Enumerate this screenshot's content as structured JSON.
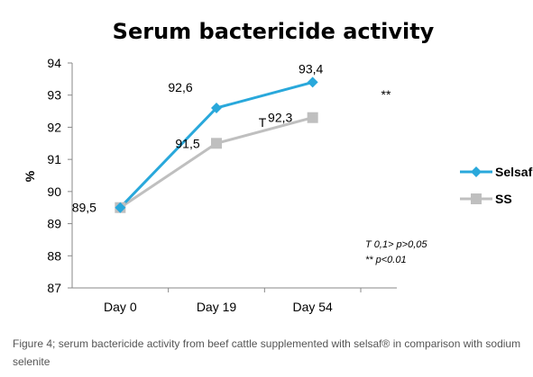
{
  "chart_data": {
    "type": "line",
    "title": "Serum bactericide activity",
    "xlabel": "",
    "ylabel": "%",
    "categories": [
      "Day 0",
      "Day 19",
      "Day 54"
    ],
    "ylim": [
      87,
      94
    ],
    "yticks": [
      "87",
      "88",
      "89",
      "90",
      "91",
      "92",
      "93",
      "94"
    ],
    "grid": false,
    "legend_position": "right",
    "series": [
      {
        "name": "Selsaf",
        "values": [
          89.5,
          92.6,
          93.4
        ],
        "labels": [
          "89,5",
          "92,6",
          "93,4"
        ],
        "color": "#29A8DB",
        "marker": "diamond"
      },
      {
        "name": "SS",
        "values": [
          89.5,
          91.5,
          92.3
        ],
        "labels": [
          "",
          "91,5",
          "92,3"
        ],
        "color": "#BFBFBF",
        "marker": "square"
      }
    ],
    "annotations": [
      "T",
      "**"
    ],
    "footnotes": [
      "T  0,1> p>0,05",
      "** p<0.01"
    ]
  },
  "caption": "Figure 4; serum bactericide activity from beef cattle supplemented with selsaf® in comparison with sodium selenite"
}
